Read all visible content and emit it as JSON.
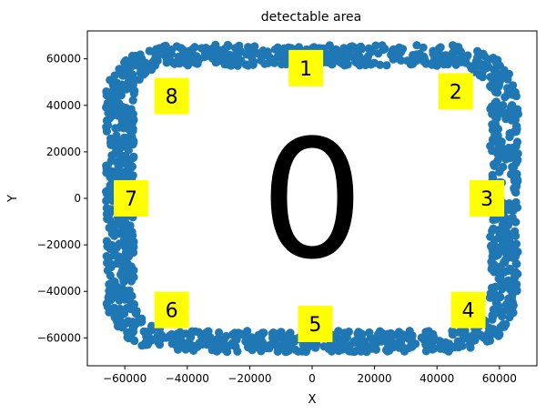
{
  "chart_data": {
    "type": "scatter",
    "title": "detectable area",
    "xlabel": "X",
    "ylabel": "Y",
    "xlim": [
      -72000,
      72000
    ],
    "ylim": [
      -72000,
      72000
    ],
    "xticks": [
      -60000,
      -40000,
      -20000,
      0,
      20000,
      40000,
      60000
    ],
    "yticks": [
      -60000,
      -40000,
      -20000,
      0,
      20000,
      40000,
      60000
    ],
    "grid": false,
    "series_color": "#1f77b4",
    "region": {
      "description": "points scattered in a rounded-rectangle band",
      "x_range": [
        -66000,
        66000
      ],
      "y_range": [
        -66000,
        66000
      ],
      "band_width": 9000,
      "corner_radius": 22000
    },
    "zone_color": "#ffff00",
    "zones": [
      {
        "label": "1",
        "x": -2000,
        "y": 56000
      },
      {
        "label": "2",
        "x": 46000,
        "y": 46000
      },
      {
        "label": "3",
        "x": 56000,
        "y": 0
      },
      {
        "label": "4",
        "x": 50000,
        "y": -48000
      },
      {
        "label": "5",
        "x": 1000,
        "y": -54000
      },
      {
        "label": "6",
        "x": -45000,
        "y": -48000
      },
      {
        "label": "7",
        "x": -58000,
        "y": 0
      },
      {
        "label": "8",
        "x": -45000,
        "y": 44000
      }
    ],
    "center_label": {
      "label": "0",
      "x": 0,
      "y": 0
    }
  }
}
